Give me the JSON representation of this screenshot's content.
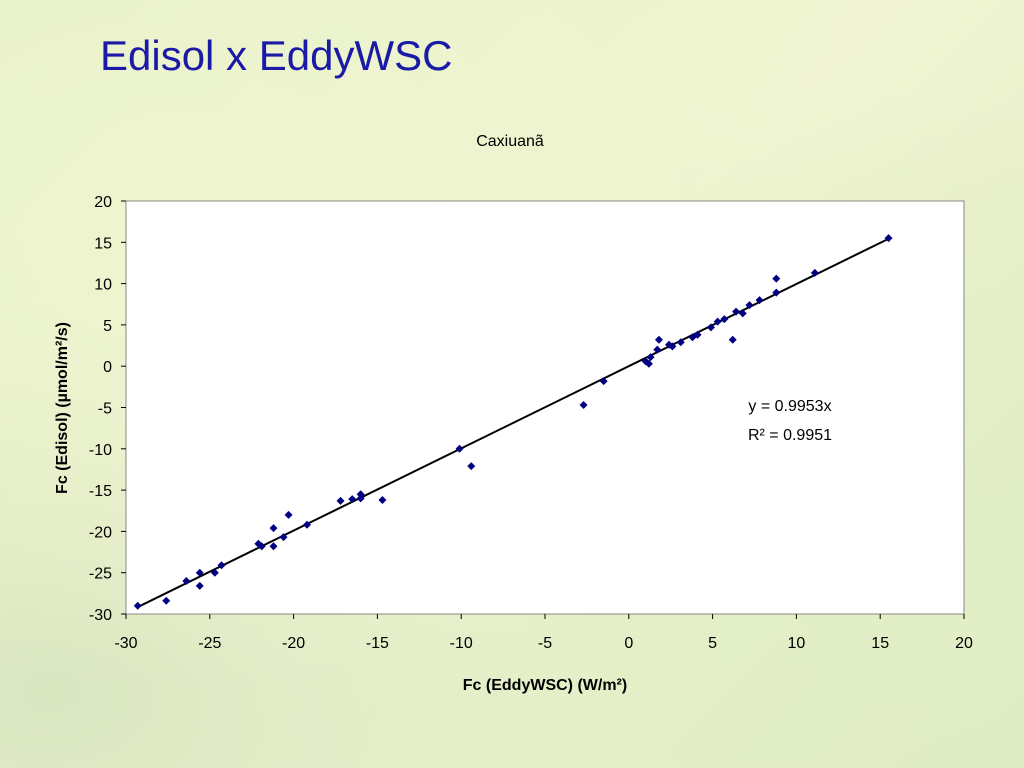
{
  "header": {
    "title": "Edisol x EddyWSC"
  },
  "chart_data": {
    "type": "scatter",
    "title": "Caxiuanã",
    "x_label": "Fc (EddyWSC) (W/m²)",
    "y_label": "Fc (Edisol) (µmol/m²/s)",
    "annotations": [
      "y = 0.9953x",
      "R² = 0.9951"
    ],
    "xlim": [
      -30,
      20
    ],
    "xticks": [
      -30,
      -25,
      -20,
      -15,
      -10,
      -5,
      0,
      5,
      10,
      15,
      20
    ],
    "ylim": [
      -30,
      20
    ],
    "yticks": [
      -30,
      -25,
      -20,
      -15,
      -10,
      -5,
      0,
      5,
      10,
      15,
      20
    ],
    "series": [
      {
        "color": "#000080",
        "x": [
          -29.3,
          -27.6,
          -26.4,
          -25.6,
          -25.6,
          -24.7,
          -24.3,
          -22.1,
          -21.9,
          -21.2,
          -21.2,
          -20.6,
          -20.3,
          -19.2,
          -17.2,
          -16.5,
          -16.0,
          -16.0,
          -14.7,
          -10.1,
          -9.4,
          -2.7,
          -1.5,
          1.0,
          1.2,
          1.3,
          1.7,
          1.8,
          2.4,
          2.6,
          3.1,
          3.8,
          4.1,
          4.9,
          5.3,
          5.7,
          6.2,
          6.4,
          6.8,
          7.2,
          7.8,
          8.8,
          8.8,
          11.1,
          15.5
        ],
        "values": [
          -29.0,
          -28.4,
          -26.0,
          -25.0,
          -26.6,
          -25.0,
          -24.1,
          -21.5,
          -21.8,
          -19.6,
          -21.8,
          -20.7,
          -18.0,
          -19.2,
          -16.3,
          -16.1,
          -15.5,
          -16.0,
          -16.2,
          -10.0,
          -12.1,
          -4.7,
          -1.8,
          0.6,
          0.3,
          1.1,
          2.0,
          3.2,
          2.6,
          2.4,
          2.9,
          3.5,
          3.8,
          4.7,
          5.4,
          5.7,
          3.2,
          6.6,
          6.4,
          7.4,
          8.0,
          8.9,
          10.6,
          11.3,
          15.5
        ]
      }
    ],
    "trendline": {
      "color": "#000000",
      "x": [
        -29.3,
        15.5
      ],
      "values": [
        -29.16,
        15.43
      ]
    }
  }
}
